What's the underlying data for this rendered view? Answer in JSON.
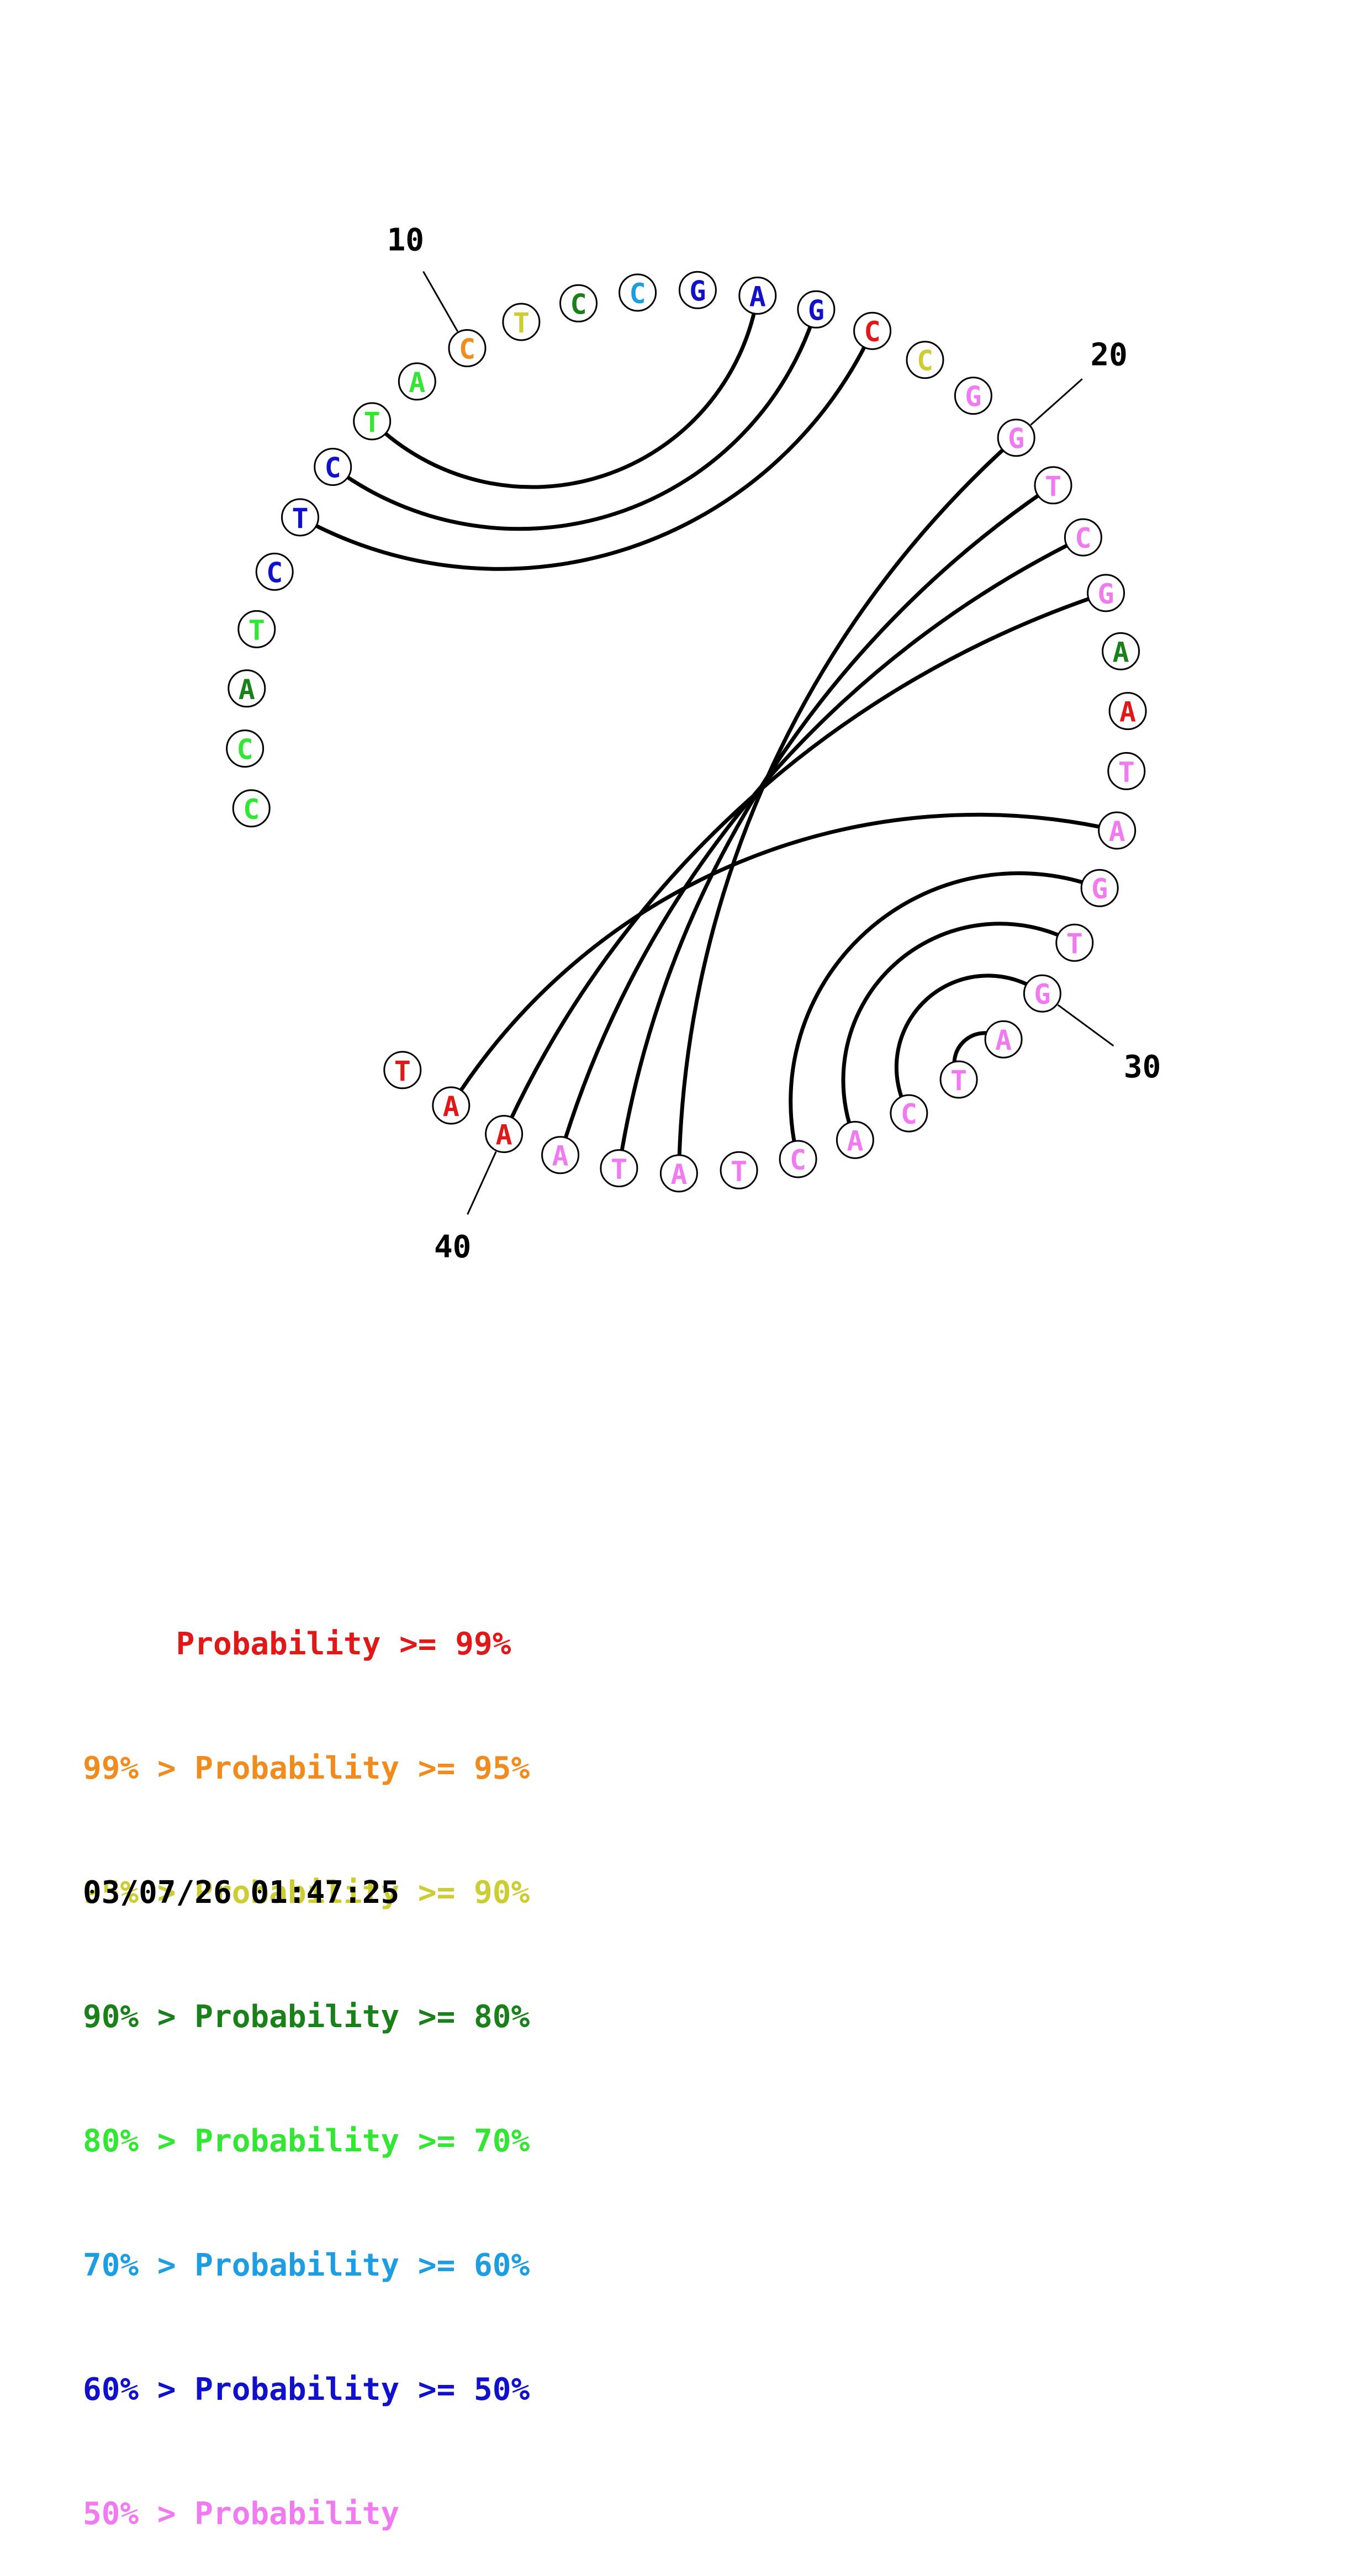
{
  "diagram": {
    "sequence": [
      "C",
      "C",
      "A",
      "T",
      "C",
      "T",
      "C",
      "T",
      "A",
      "C",
      "T",
      "C",
      "C",
      "G",
      "A",
      "G",
      "C",
      "C",
      "G",
      "G",
      "T",
      "C",
      "G",
      "A",
      "A",
      "T",
      "A",
      "G",
      "T",
      "G",
      "A",
      "T",
      "C",
      "A",
      "C",
      "T",
      "A",
      "T",
      "A",
      "A",
      "A",
      "T"
    ],
    "confidence_colors": [
      "#33e633",
      "#33e633",
      "#1a801a",
      "#33e633",
      "#1111cc",
      "#1111cc",
      "#1111cc",
      "#33e633",
      "#33e633",
      "#f08c1e",
      "#cccc33",
      "#1a801a",
      "#1e9ee0",
      "#1111cc",
      "#1111cc",
      "#1111cc",
      "#e01818",
      "#cccc33",
      "#f07af0",
      "#f07af0",
      "#f07af0",
      "#f07af0",
      "#f07af0",
      "#1a801a",
      "#e01818",
      "#f07af0",
      "#f07af0",
      "#f07af0",
      "#f07af0",
      "#f07af0",
      "#f07af0",
      "#f07af0",
      "#f07af0",
      "#f07af0",
      "#f07af0",
      "#f07af0",
      "#f07af0",
      "#f07af0",
      "#f07af0",
      "#e01818",
      "#e01818",
      "#e01818"
    ],
    "pairs": [
      [
        5,
        16
      ],
      [
        6,
        15
      ],
      [
        7,
        14
      ],
      [
        19,
        36
      ],
      [
        20,
        37
      ],
      [
        21,
        38
      ],
      [
        22,
        39
      ],
      [
        26,
        40
      ],
      [
        27,
        34
      ],
      [
        28,
        33
      ],
      [
        29,
        32
      ],
      [
        30,
        31
      ]
    ],
    "position_labels": [
      {
        "index": 10,
        "label": "10"
      },
      {
        "index": 20,
        "label": "20"
      },
      {
        "index": 30,
        "label": "30"
      },
      {
        "index": 40,
        "label": "40"
      }
    ]
  },
  "legend": [
    {
      "text": "     Probability >= 99%",
      "color": "#e01818"
    },
    {
      "text": "99% > Probability >= 95%",
      "color": "#f08c1e"
    },
    {
      "text": "95% > Probability >= 90%",
      "color": "#cccc33"
    },
    {
      "text": "90% > Probability >= 80%",
      "color": "#1a801a"
    },
    {
      "text": "80% > Probability >= 70%",
      "color": "#33e633"
    },
    {
      "text": "70% > Probability >= 60%",
      "color": "#1e9ee0"
    },
    {
      "text": "60% > Probability >= 50%",
      "color": "#1111cc"
    },
    {
      "text": "50% > Probability",
      "color": "#f07af0"
    }
  ],
  "timestamp": "03/07/26 01:47:25"
}
